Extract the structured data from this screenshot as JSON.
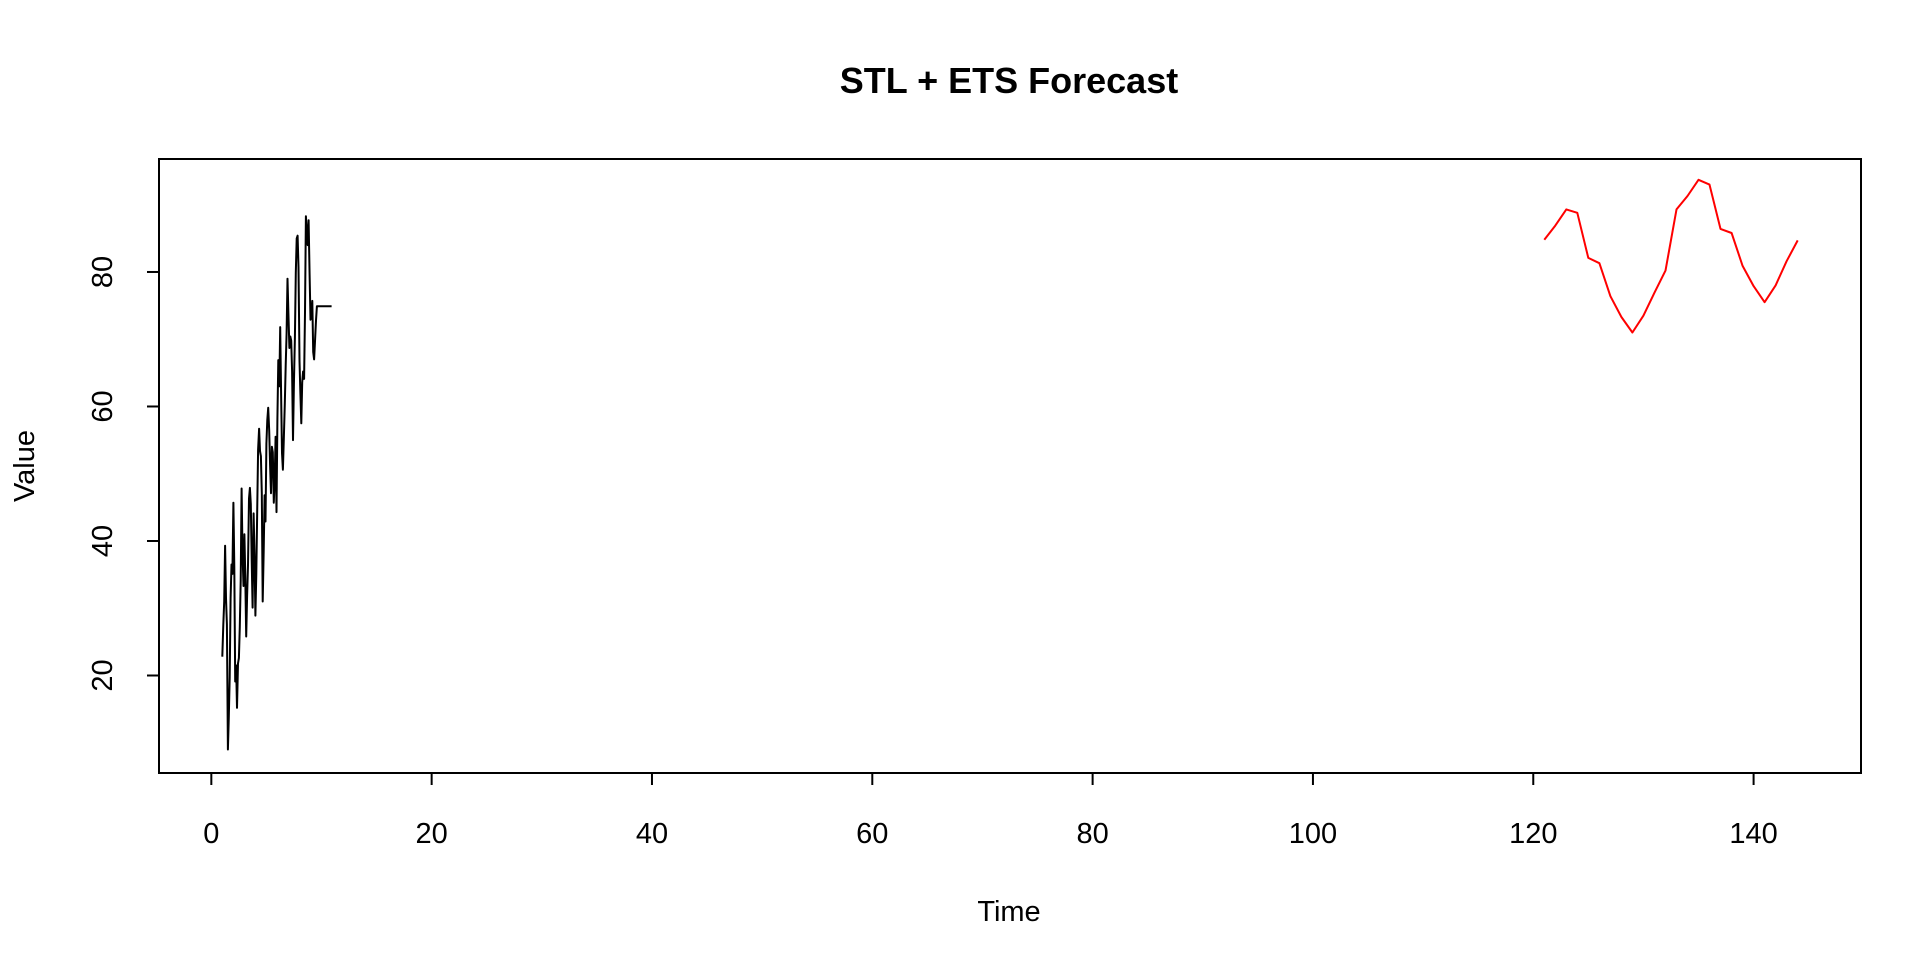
{
  "chart_data": {
    "type": "line",
    "title": "STL + ETS Forecast",
    "xlabel": "Time",
    "ylabel": "Value",
    "xlim": [
      -4.75,
      149.75
    ],
    "ylim": [
      5.5,
      96.8
    ],
    "xticks": [
      0,
      20,
      40,
      60,
      80,
      100,
      120,
      140
    ],
    "yticks": [
      20,
      40,
      60,
      80
    ],
    "grid": false,
    "legend": "none",
    "series": [
      {
        "color": "#000000",
        "x": [
          1.0,
          1.083,
          1.167,
          1.25,
          1.333,
          1.417,
          1.5,
          1.583,
          1.667,
          1.75,
          1.833,
          1.917,
          2.0,
          2.083,
          2.167,
          2.25,
          2.333,
          2.417,
          2.5,
          2.583,
          2.667,
          2.75,
          2.833,
          2.917,
          3.0,
          3.083,
          3.167,
          3.25,
          3.333,
          3.417,
          3.5,
          3.583,
          3.667,
          3.75,
          3.833,
          3.917,
          4.0,
          4.083,
          4.167,
          4.25,
          4.333,
          4.417,
          4.5,
          4.583,
          4.667,
          4.75,
          4.833,
          4.917,
          5.0,
          5.083,
          5.167,
          5.25,
          5.333,
          5.417,
          5.5,
          5.583,
          5.667,
          5.75,
          5.833,
          5.917,
          6.0,
          6.083,
          6.167,
          6.25,
          6.333,
          6.417,
          6.5,
          6.583,
          6.667,
          6.75,
          6.833,
          6.917,
          7.0,
          7.083,
          7.167,
          7.25,
          7.333,
          7.417,
          7.5,
          7.583,
          7.667,
          7.75,
          7.833,
          7.917,
          8.0,
          8.083,
          8.167,
          8.25,
          8.333,
          8.417,
          8.5,
          8.583,
          8.667,
          8.75,
          8.833,
          8.917,
          9.0,
          9.083,
          9.167,
          9.25,
          9.333,
          9.417,
          9.5,
          9.583,
          9.667,
          9.75,
          9.833,
          9.917,
          10.0,
          10.083,
          10.167,
          10.25,
          10.333,
          10.417,
          10.5,
          10.583,
          10.667,
          10.75,
          10.833,
          10.917
        ],
        "values": [
          22.8,
          27.5,
          31.0,
          39.3,
          31.5,
          27.6,
          9.0,
          13.8,
          19.8,
          31.5,
          36.5,
          35.1,
          45.7,
          36.2,
          19.1,
          21.5,
          15.2,
          21.8,
          22.6,
          27.3,
          34.1,
          47.8,
          38.3,
          33.3,
          41.0,
          34.6,
          25.8,
          31.8,
          36.4,
          46.3,
          47.9,
          45.5,
          37.1,
          30.1,
          44.1,
          38.0,
          28.9,
          35.1,
          44.5,
          53.6,
          56.7,
          53.4,
          52.6,
          47.1,
          31.0,
          38.6,
          46.8,
          42.9,
          54.5,
          58.0,
          59.8,
          56.4,
          51.2,
          47.1,
          54.0,
          53.2,
          45.7,
          49.3,
          55.5,
          44.3,
          58.1,
          66.9,
          63.0,
          71.8,
          61.9,
          53.1,
          50.6,
          55.1,
          60.4,
          66.1,
          70.9,
          79.0,
          73.9,
          68.7,
          70.4,
          69.8,
          65.2,
          55.0,
          63.3,
          70.2,
          79.9,
          85.0,
          85.4,
          80.7,
          66.8,
          61.9,
          57.5,
          63.6,
          65.2,
          64.1,
          74.0,
          88.3,
          86.1,
          84.0,
          87.7,
          79.6,
          72.9,
          73.3,
          75.7,
          68.1,
          67.0,
          70.0,
          72.8,
          74.9,
          74.9,
          74.9,
          74.9,
          74.9,
          74.9,
          74.9,
          74.9,
          74.9,
          74.9,
          74.9,
          74.9,
          74.9,
          74.9,
          74.9,
          74.9,
          74.9
        ]
      },
      {
        "color": "#ff0000",
        "x": [
          121,
          122,
          123,
          124,
          125,
          126,
          127,
          128,
          129,
          130,
          131,
          132,
          133,
          134,
          135,
          136,
          137,
          138,
          139,
          140,
          141,
          142,
          143,
          144
        ],
        "values": [
          84.8,
          86.9,
          89.3,
          88.8,
          82.1,
          81.3,
          76.4,
          73.3,
          71.0,
          73.5,
          76.9,
          80.2,
          89.3,
          91.3,
          93.7,
          93.0,
          86.4,
          85.8,
          80.9,
          77.9,
          75.5,
          78.0,
          81.6,
          84.7
        ]
      }
    ]
  }
}
